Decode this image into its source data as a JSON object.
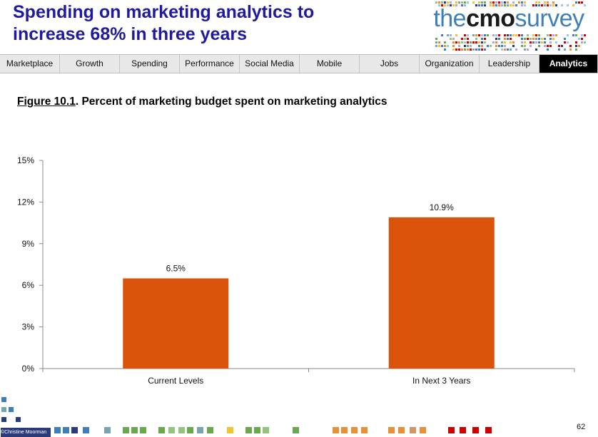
{
  "header": {
    "title_line1": "Spending on marketing analytics to",
    "title_line2": "increase 68% in three years"
  },
  "logo": {
    "text_light_1": "the",
    "text_bold": "cmo",
    "text_light_2": "survey"
  },
  "nav": {
    "tabs": [
      {
        "label": "Marketplace",
        "active": false
      },
      {
        "label": "Growth",
        "active": false
      },
      {
        "label": "Spending",
        "active": false
      },
      {
        "label": "Performance",
        "active": false
      },
      {
        "label": "Social Media",
        "active": false
      },
      {
        "label": "Mobile",
        "active": false
      },
      {
        "label": "Jobs",
        "active": false
      },
      {
        "label": "Organization",
        "active": false
      },
      {
        "label": "Leadership",
        "active": false
      },
      {
        "label": "Analytics",
        "active": true
      }
    ]
  },
  "figure": {
    "number": "Figure 10.1",
    "caption": ". Percent of marketing budget spent on marketing analytics"
  },
  "chart_data": {
    "type": "bar",
    "categories": [
      "Current Levels",
      "In Next 3 Years"
    ],
    "values": [
      6.5,
      10.9
    ],
    "data_labels": [
      "6.5%",
      "10.9%"
    ],
    "title": "",
    "xlabel": "",
    "ylabel": "",
    "ylim": [
      0,
      15
    ],
    "yticks": [
      0,
      3,
      6,
      9,
      12,
      15
    ],
    "ytick_labels": [
      "0%",
      "3%",
      "6%",
      "9%",
      "12%",
      "15%"
    ],
    "grid": false,
    "legend": "none",
    "bar_color": "#d9530a"
  },
  "footer": {
    "copyright": "©Christine Moorman",
    "page_number": "62"
  },
  "colors": {
    "title": "#1f1aa0",
    "logo_blue": "#3d7fb6",
    "nav_active_bg": "#000000"
  }
}
